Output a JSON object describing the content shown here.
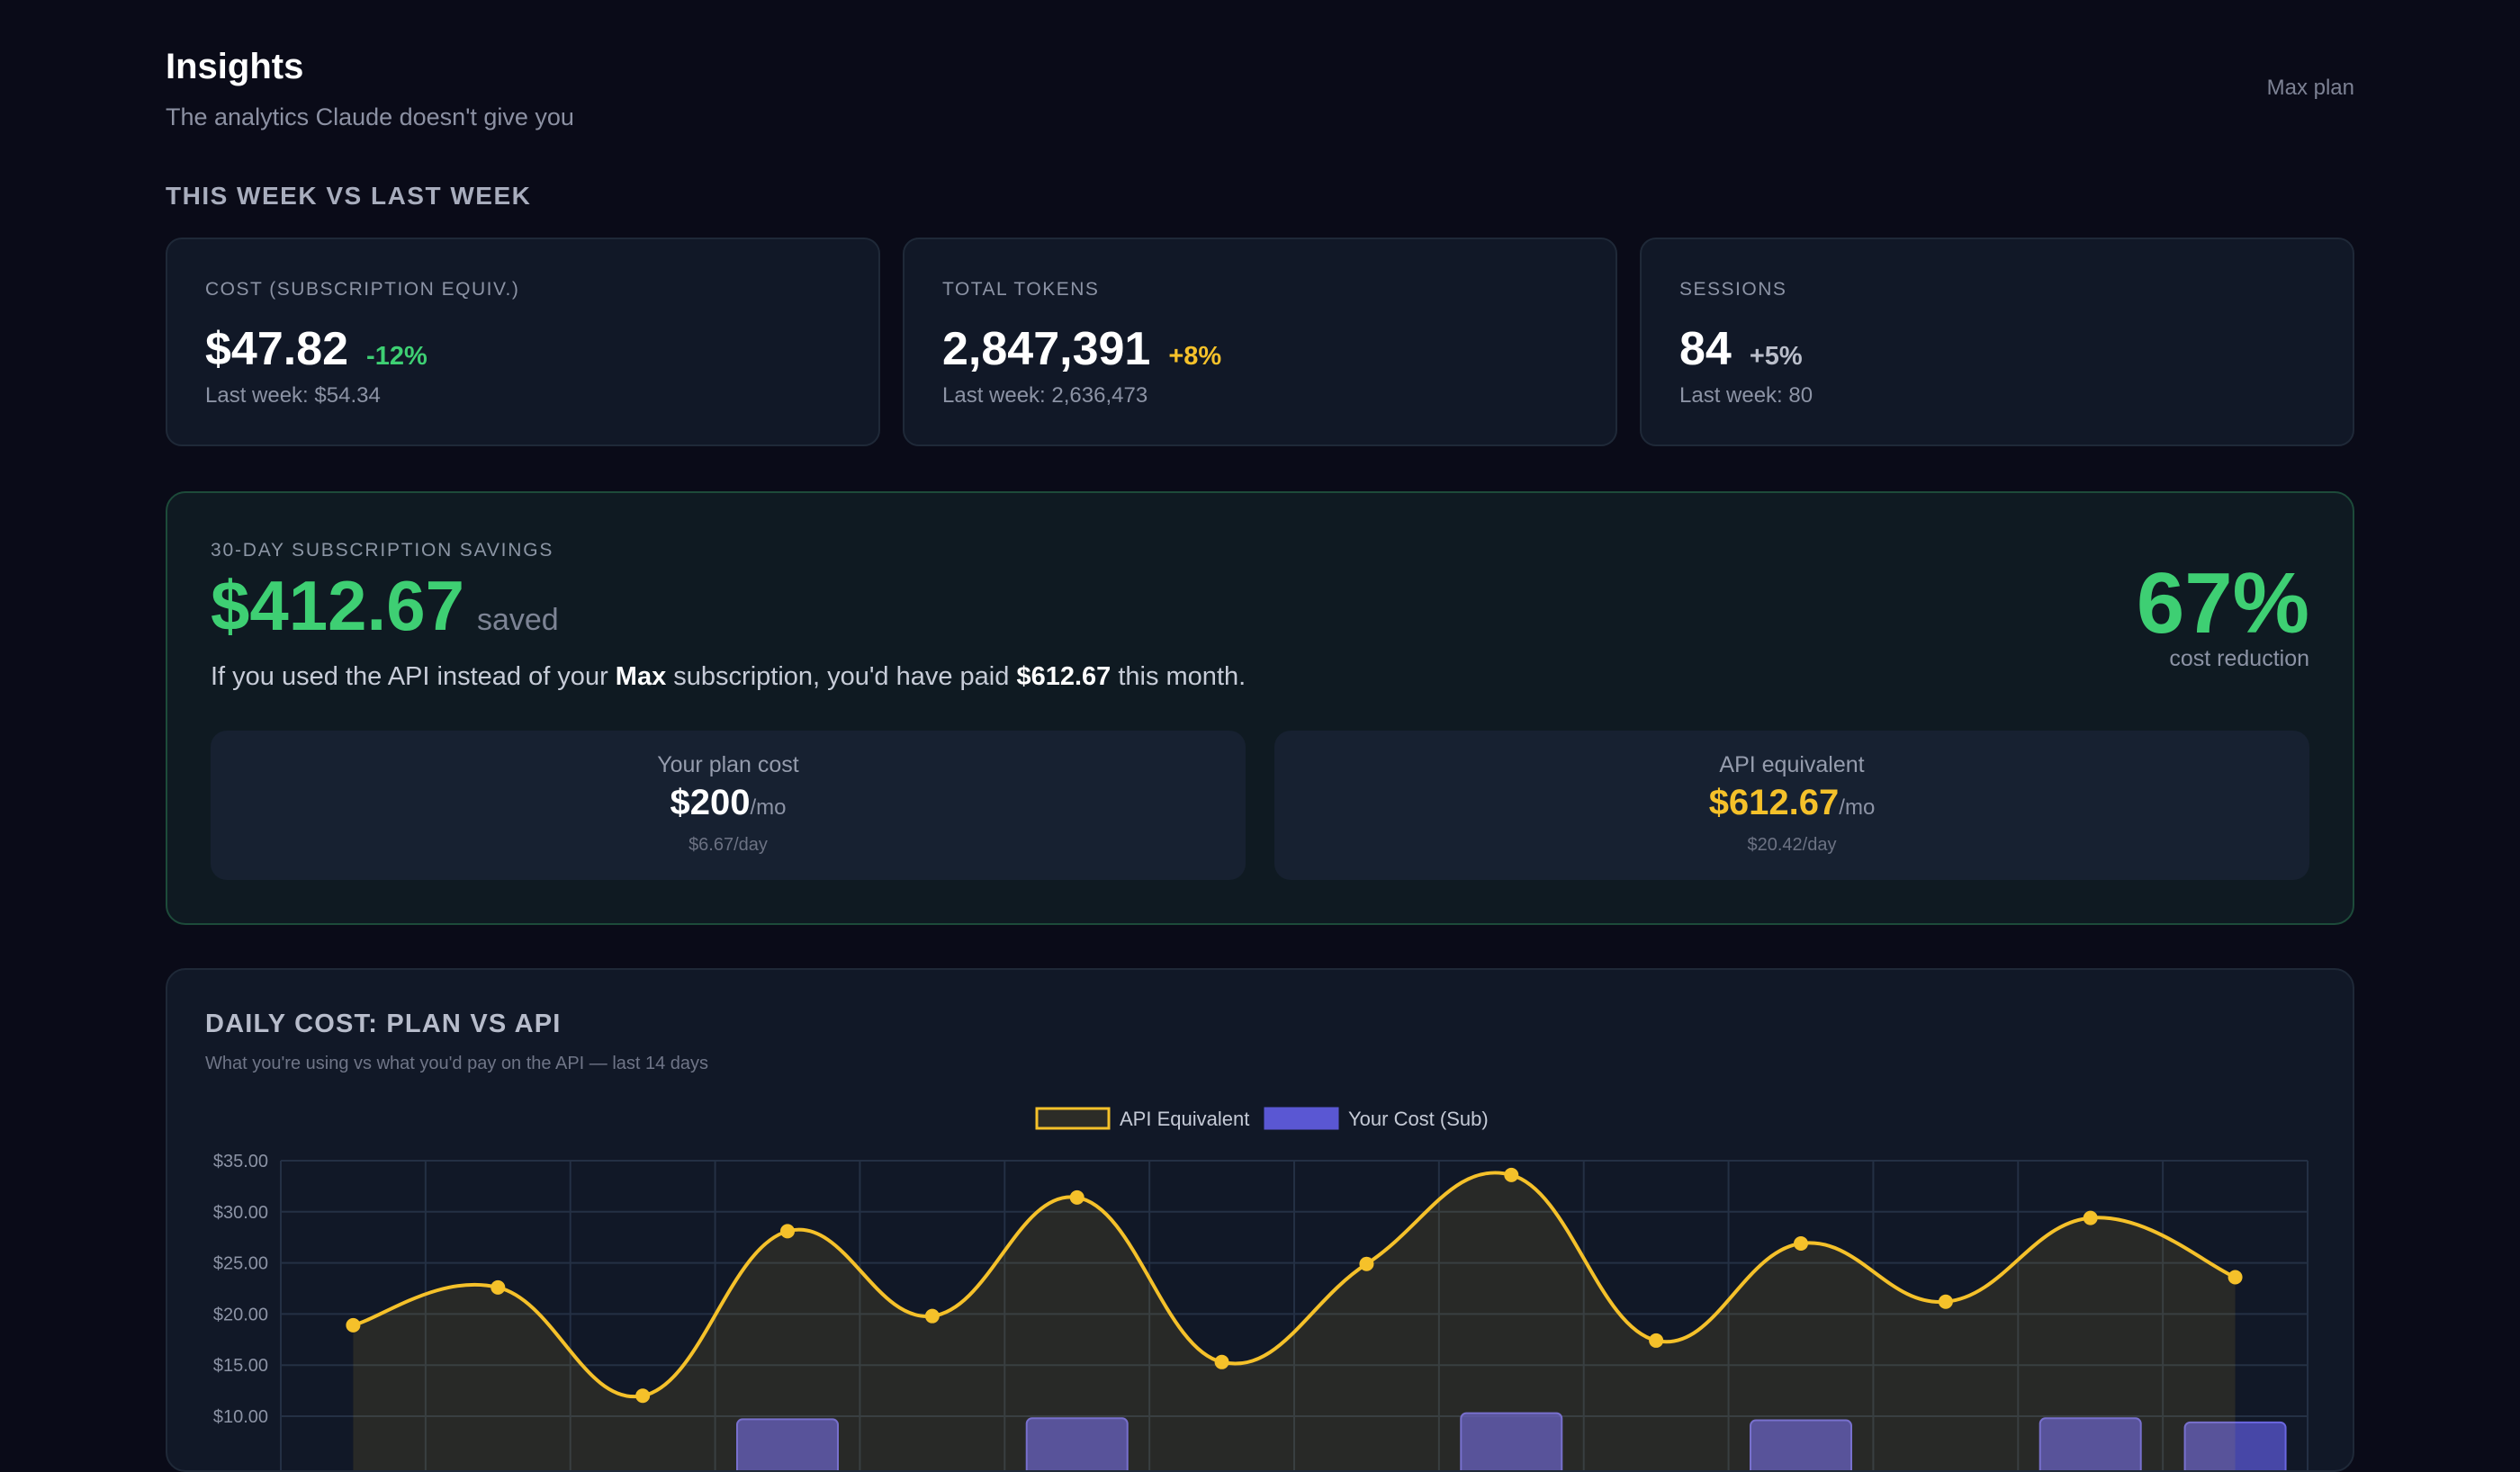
{
  "header": {
    "title": "Insights",
    "subtitle": "The analytics Claude doesn't give you",
    "plan_label": "Max plan"
  },
  "week_section": {
    "title": "THIS WEEK VS LAST WEEK",
    "cards": [
      {
        "label": "COST (SUBSCRIPTION EQUIV.)",
        "value": "$47.82",
        "delta": "-12%",
        "delta_color": "#3ecf73",
        "last_week": "Last week: $54.34"
      },
      {
        "label": "TOTAL TOKENS",
        "value": "2,847,391",
        "delta": "+8%",
        "delta_color": "#f5c12a",
        "last_week": "Last week: 2,636,473"
      },
      {
        "label": "SESSIONS",
        "value": "84",
        "delta": "+5%",
        "delta_color": "#b9bdc9",
        "last_week": "Last week: 80"
      }
    ]
  },
  "savings": {
    "label": "30-DAY SUBSCRIPTION SAVINGS",
    "amount": "$412.67",
    "saved_word": "saved",
    "text_prefix": "If you used the API instead of your ",
    "plan_name": "Max",
    "text_middle": " subscription, you'd have paid ",
    "api_total": "$612.67",
    "text_suffix": " this month.",
    "percent": "67%",
    "percent_label": "cost reduction",
    "plan_box": {
      "label": "Your plan cost",
      "value": "$200",
      "unit": "/mo",
      "per_day": "$6.67/day",
      "color": "#ffffff"
    },
    "api_box": {
      "label": "API equivalent",
      "value": "$612.67",
      "unit": "/mo",
      "per_day": "$20.42/day",
      "color": "#f5c12a"
    }
  },
  "chart_card": {
    "title": "DAILY COST: PLAN VS API",
    "subtitle": "What you're using vs what you'd pay on the API — last 14 days"
  },
  "chart_data": {
    "type": "line",
    "ylim": [
      10,
      35
    ],
    "y_ticks": [
      "$10.00",
      "$15.00",
      "$20.00",
      "$25.00",
      "$30.00",
      "$35.00"
    ],
    "y_tick_values": [
      10,
      15,
      20,
      25,
      30,
      35
    ],
    "grid": true,
    "legend_placement": "top-center",
    "series": [
      {
        "name": "API Equivalent",
        "kind": "area-line",
        "color": "#f5c12a",
        "values": [
          18.9,
          22.6,
          12.0,
          28.1,
          19.8,
          31.4,
          15.3,
          24.9,
          33.6,
          17.4,
          26.9,
          21.2,
          29.4,
          23.6
        ]
      },
      {
        "name": "Your Cost (Sub)",
        "kind": "bar",
        "color": "#5250c2",
        "values": [
          null,
          null,
          null,
          9.7,
          null,
          9.8,
          null,
          null,
          10.3,
          null,
          9.6,
          null,
          9.8,
          9.4
        ]
      }
    ],
    "colors": {
      "api": "#f5c12a",
      "sub": "#5a57d3"
    }
  }
}
